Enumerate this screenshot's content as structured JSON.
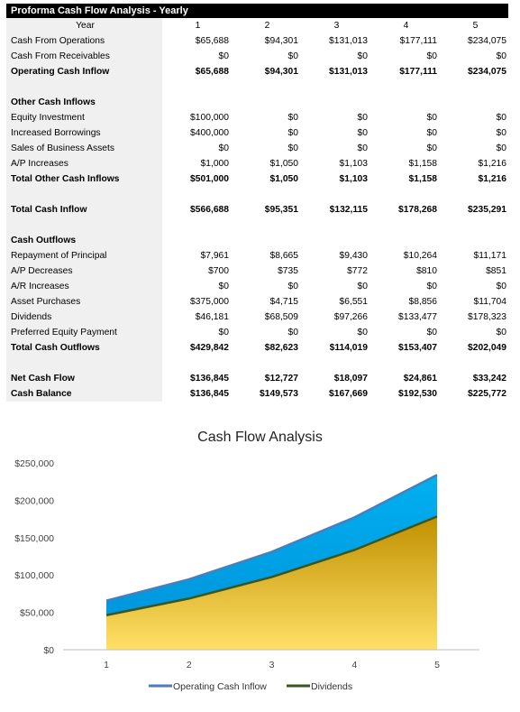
{
  "sheet": {
    "title": "Proforma Cash Flow Analysis - Yearly",
    "header": {
      "label": "Year",
      "years": [
        "1",
        "2",
        "3",
        "4",
        "5"
      ]
    },
    "rows": [
      {
        "label": "Cash From Operations",
        "bold": false,
        "values": [
          "$65,688",
          "$94,301",
          "$131,013",
          "$177,111",
          "$234,075"
        ]
      },
      {
        "label": "Cash From Receivables",
        "bold": false,
        "values": [
          "$0",
          "$0",
          "$0",
          "$0",
          "$0"
        ]
      },
      {
        "label": "Operating Cash Inflow",
        "bold": true,
        "values": [
          "$65,688",
          "$94,301",
          "$131,013",
          "$177,111",
          "$234,075"
        ]
      },
      {
        "spacer": true
      },
      {
        "label": "Other Cash Inflows",
        "bold": true,
        "values": [
          "",
          "",
          "",
          "",
          ""
        ]
      },
      {
        "label": "Equity Investment",
        "bold": false,
        "values": [
          "$100,000",
          "$0",
          "$0",
          "$0",
          "$0"
        ]
      },
      {
        "label": "Increased Borrowings",
        "bold": false,
        "values": [
          "$400,000",
          "$0",
          "$0",
          "$0",
          "$0"
        ]
      },
      {
        "label": "Sales of Business Assets",
        "bold": false,
        "values": [
          "$0",
          "$0",
          "$0",
          "$0",
          "$0"
        ]
      },
      {
        "label": "A/P Increases",
        "bold": false,
        "values": [
          "$1,000",
          "$1,050",
          "$1,103",
          "$1,158",
          "$1,216"
        ]
      },
      {
        "label": "Total Other Cash Inflows",
        "bold": true,
        "values": [
          "$501,000",
          "$1,050",
          "$1,103",
          "$1,158",
          "$1,216"
        ]
      },
      {
        "spacer": true
      },
      {
        "label": "Total Cash Inflow",
        "bold": true,
        "values": [
          "$566,688",
          "$95,351",
          "$132,115",
          "$178,268",
          "$235,291"
        ]
      },
      {
        "spacer": true
      },
      {
        "label": "Cash Outflows",
        "bold": true,
        "values": [
          "",
          "",
          "",
          "",
          ""
        ]
      },
      {
        "label": "Repayment of Principal",
        "bold": false,
        "values": [
          "$7,961",
          "$8,665",
          "$9,430",
          "$10,264",
          "$11,171"
        ]
      },
      {
        "label": "A/P Decreases",
        "bold": false,
        "values": [
          "$700",
          "$735",
          "$772",
          "$810",
          "$851"
        ]
      },
      {
        "label": "A/R Increases",
        "bold": false,
        "values": [
          "$0",
          "$0",
          "$0",
          "$0",
          "$0"
        ]
      },
      {
        "label": "Asset Purchases",
        "bold": false,
        "values": [
          "$375,000",
          "$4,715",
          "$6,551",
          "$8,856",
          "$11,704"
        ]
      },
      {
        "label": "Dividends",
        "bold": false,
        "values": [
          "$46,181",
          "$68,509",
          "$97,266",
          "$133,477",
          "$178,323"
        ]
      },
      {
        "label": "Preferred Equity Payment",
        "bold": false,
        "values": [
          "$0",
          "$0",
          "$0",
          "$0",
          "$0"
        ]
      },
      {
        "label": "Total Cash Outflows",
        "bold": true,
        "values": [
          "$429,842",
          "$82,623",
          "$114,019",
          "$153,407",
          "$202,049"
        ]
      },
      {
        "spacer": true
      },
      {
        "label": "Net Cash Flow",
        "bold": true,
        "values": [
          "$136,845",
          "$12,727",
          "$18,097",
          "$24,861",
          "$33,242"
        ]
      },
      {
        "label": "Cash Balance",
        "bold": true,
        "values": [
          "$136,845",
          "$149,573",
          "$167,669",
          "$192,530",
          "$225,772"
        ]
      }
    ]
  },
  "chart_data": {
    "type": "area",
    "title": "Cash Flow Analysis",
    "categories": [
      "1",
      "2",
      "3",
      "4",
      "5"
    ],
    "series": [
      {
        "name": "Operating Cash Inflow",
        "values": [
          65688,
          94301,
          131013,
          177111,
          234075
        ],
        "line_color": "#4a7ebb",
        "fill_top": "#00b0f0",
        "fill_bottom": "#0090d8"
      },
      {
        "name": "Dividends",
        "values": [
          46181,
          68509,
          97266,
          133477,
          178323
        ],
        "line_color": "#375623",
        "fill_top": "#c09000",
        "fill_bottom": "#ffe066"
      }
    ],
    "ylim": [
      0,
      250000
    ],
    "yticks": [
      0,
      50000,
      100000,
      150000,
      200000,
      250000
    ],
    "ytick_labels": [
      "$0",
      "$50,000",
      "$100,000",
      "$150,000",
      "$200,000",
      "$250,000"
    ],
    "legend_position": "bottom",
    "grid": false
  }
}
